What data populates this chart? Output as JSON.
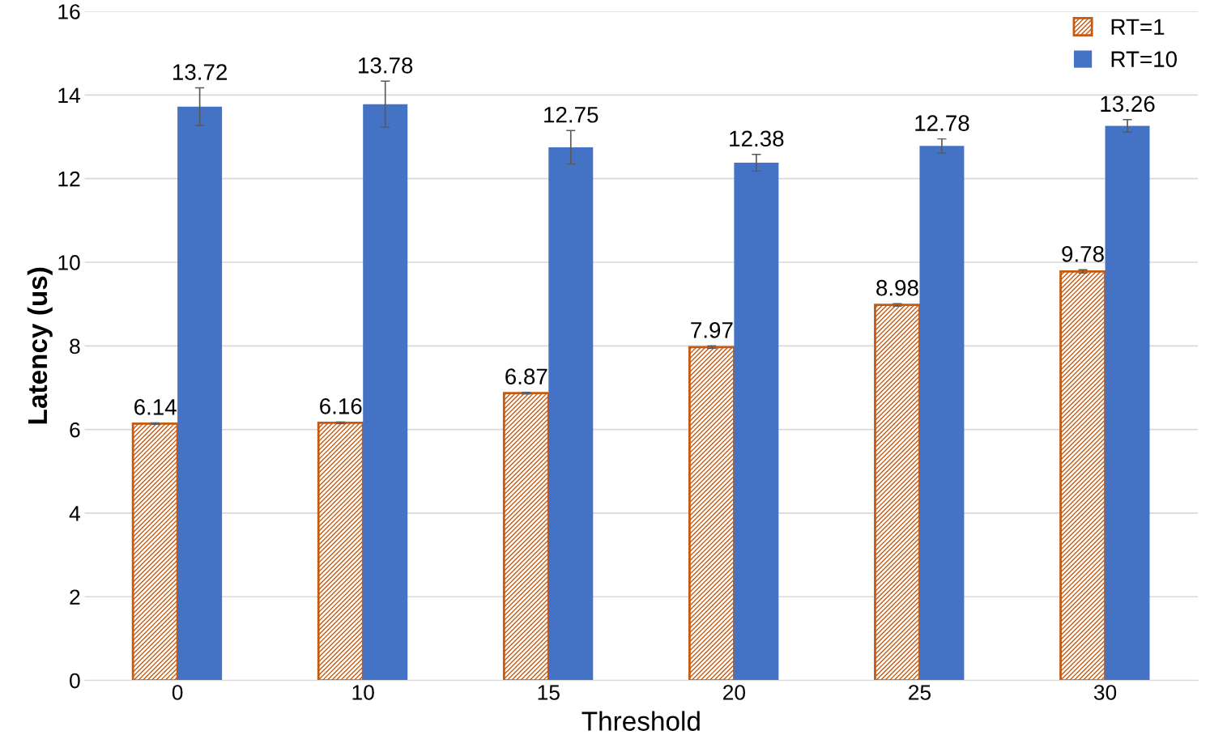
{
  "chart_data": {
    "type": "bar",
    "xlabel": "Threshold",
    "ylabel": "Latency (us)",
    "categories": [
      "0",
      "10",
      "15",
      "20",
      "25",
      "30"
    ],
    "series": [
      {
        "name": "RT=1",
        "color": "#c55a11",
        "values": [
          6.14,
          6.16,
          6.87,
          7.97,
          8.98,
          9.78
        ],
        "errors": [
          0.02,
          0.02,
          0.02,
          0.03,
          0.03,
          0.04
        ]
      },
      {
        "name": "RT=10",
        "color": "#4472c4",
        "values": [
          13.72,
          13.78,
          12.75,
          12.38,
          12.78,
          13.26
        ],
        "errors": [
          0.45,
          0.55,
          0.4,
          0.2,
          0.17,
          0.15
        ]
      }
    ],
    "ylim": [
      0,
      16
    ],
    "yticks": [
      0,
      2,
      4,
      6,
      8,
      10,
      12,
      14,
      16
    ],
    "grid": "y",
    "legend": "top right",
    "data_labels": true
  }
}
